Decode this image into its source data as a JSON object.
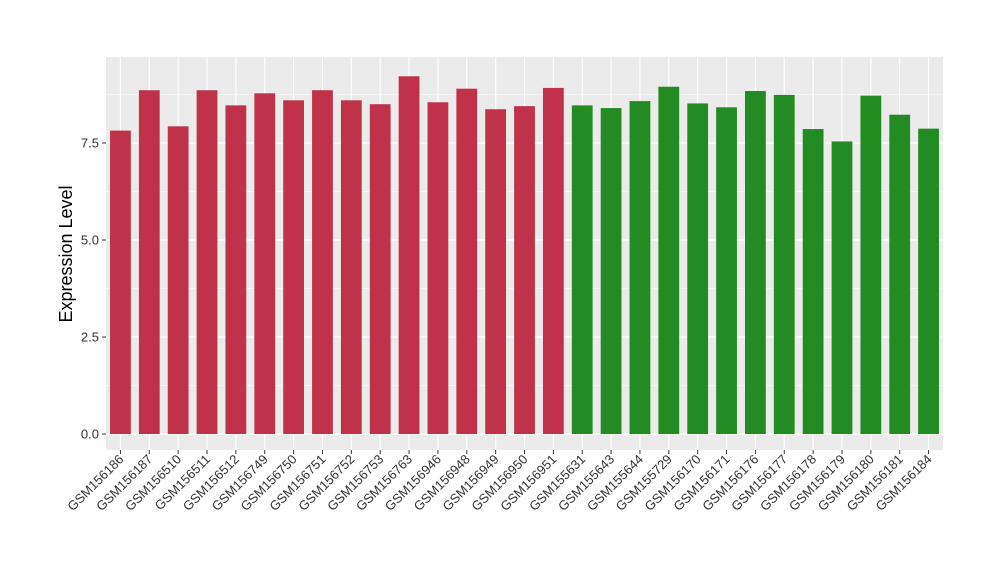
{
  "chart_data": {
    "type": "bar",
    "xlabel": "",
    "ylabel": "Expression Level",
    "ylim": [
      0,
      9.75
    ],
    "y_ticks": [
      "0.0",
      "2.5",
      "5.0",
      "7.5"
    ],
    "y_tick_values": [
      0,
      2.5,
      5.0,
      7.5
    ],
    "grid": true,
    "panel_background": "#ebebeb",
    "grid_color": "#ffffff",
    "categories": [
      "GSM156186",
      "GSM156187",
      "GSM156510",
      "GSM156511",
      "GSM156512",
      "GSM156749",
      "GSM156750",
      "GSM156751",
      "GSM156752",
      "GSM156753",
      "GSM156763",
      "GSM156946",
      "GSM156948",
      "GSM156949",
      "GSM156950",
      "GSM156951",
      "GSM155631",
      "GSM155643",
      "GSM155644",
      "GSM155729",
      "GSM156170",
      "GSM156171",
      "GSM156176",
      "GSM156177",
      "GSM156178",
      "GSM156179",
      "GSM156180",
      "GSM156181",
      "GSM156184"
    ],
    "values": [
      7.82,
      8.86,
      7.93,
      8.86,
      8.47,
      8.78,
      8.6,
      8.86,
      8.6,
      8.5,
      9.22,
      8.55,
      8.9,
      8.37,
      8.45,
      8.92,
      8.47,
      8.4,
      8.58,
      8.95,
      8.52,
      8.42,
      8.84,
      8.74,
      7.86,
      7.54,
      8.72,
      8.23,
      7.87
    ],
    "bar_colors": [
      "#c0314a",
      "#c0314a",
      "#c0314a",
      "#c0314a",
      "#c0314a",
      "#c0314a",
      "#c0314a",
      "#c0314a",
      "#c0314a",
      "#c0314a",
      "#c0314a",
      "#c0314a",
      "#c0314a",
      "#c0314a",
      "#c0314a",
      "#c0314a",
      "#228b22",
      "#228b22",
      "#228b22",
      "#228b22",
      "#228b22",
      "#228b22",
      "#228b22",
      "#228b22",
      "#228b22",
      "#228b22",
      "#228b22",
      "#228b22",
      "#228b22"
    ]
  }
}
